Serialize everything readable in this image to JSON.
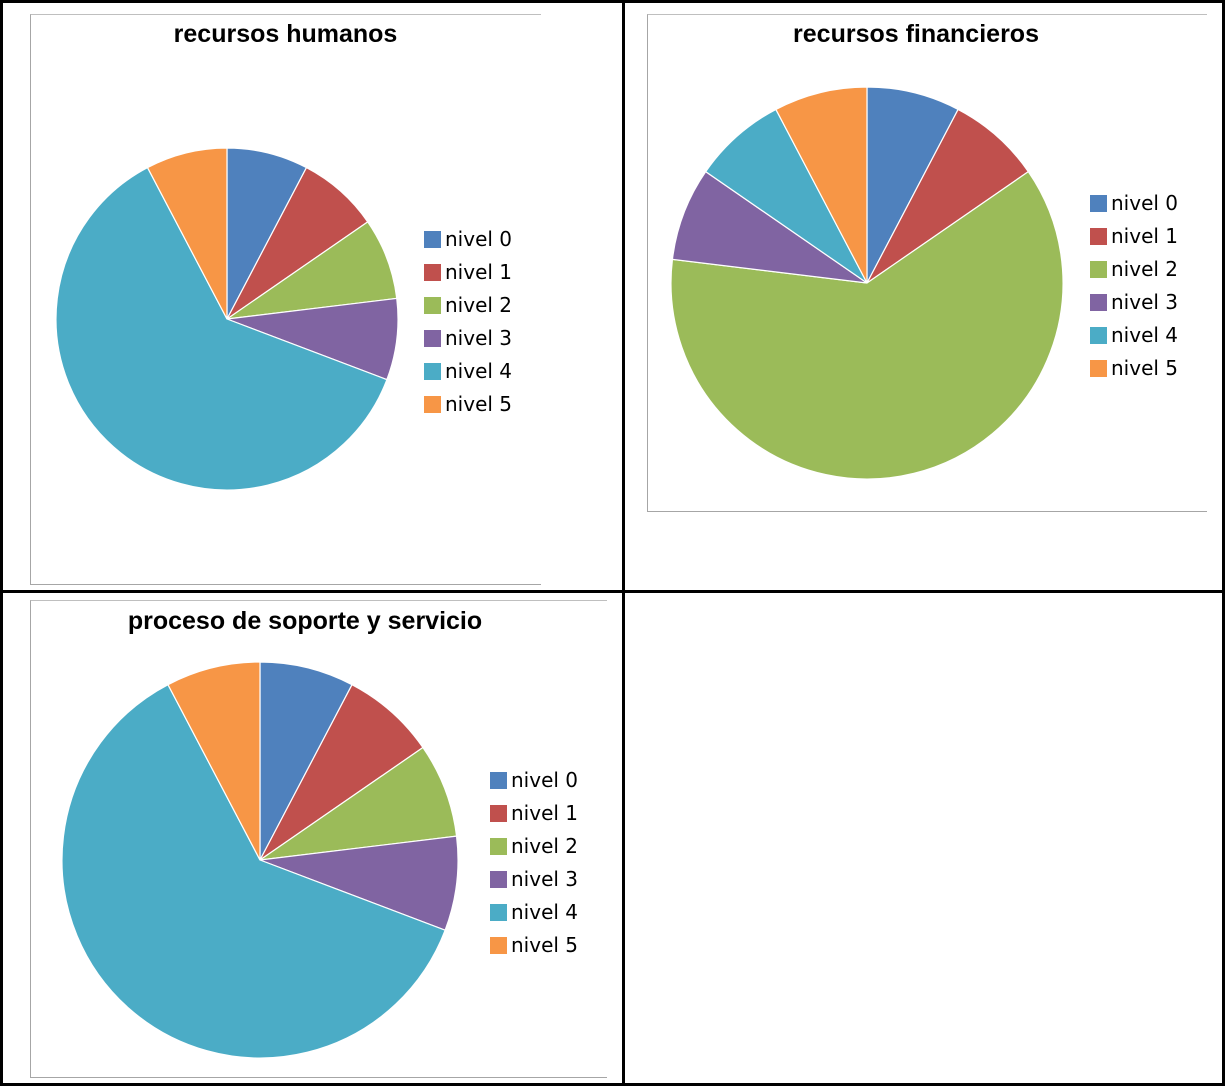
{
  "colors": {
    "nivel_0": "#4f81bd",
    "nivel_1": "#c0504d",
    "nivel_2": "#9bbb59",
    "nivel_3": "#8064a2",
    "nivel_4": "#4bacc6",
    "nivel_5": "#f79646"
  },
  "chart_data": [
    {
      "type": "pie",
      "title": "recursos humanos",
      "categories": [
        "nivel 0",
        "nivel 1",
        "nivel 2",
        "nivel 3",
        "nivel 4",
        "nivel 5"
      ],
      "values": [
        1,
        1,
        1,
        1,
        8,
        1
      ],
      "legend": "right"
    },
    {
      "type": "pie",
      "title": "recursos financieros",
      "categories": [
        "nivel 0",
        "nivel 1",
        "nivel 2",
        "nivel 3",
        "nivel 4",
        "nivel 5"
      ],
      "values": [
        1,
        1,
        8,
        1,
        1,
        1
      ],
      "legend": "right"
    },
    {
      "type": "pie",
      "title": "proceso de soporte y servicio",
      "categories": [
        "nivel 0",
        "nivel 1",
        "nivel 2",
        "nivel 3",
        "nivel 4",
        "nivel 5"
      ],
      "values": [
        1,
        1,
        1,
        1,
        8,
        1
      ],
      "legend": "right"
    }
  ]
}
